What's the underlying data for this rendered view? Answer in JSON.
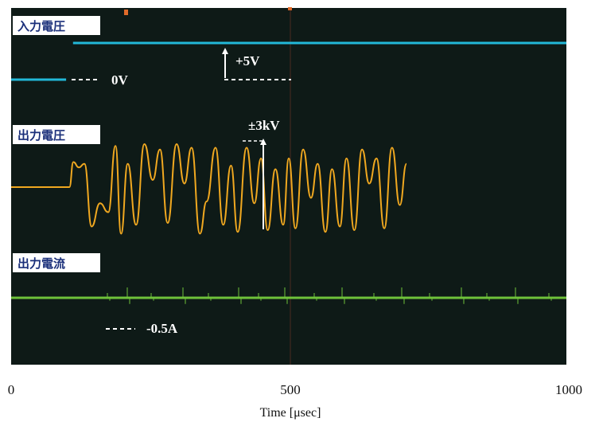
{
  "chart_data": {
    "type": "line",
    "xlabel": "Time [μsec]",
    "xlim": [
      0,
      1000
    ],
    "x_ticks": [
      "0",
      "500",
      "1000"
    ],
    "grid": false,
    "background": "#0e1a17",
    "channels": [
      {
        "name": "入力電圧",
        "color": "#22b8d8",
        "annotations": [
          "0V",
          "+5V"
        ],
        "points": [
          [
            0,
            0
          ],
          [
            99,
            0
          ],
          [
            100,
            5
          ],
          [
            1000,
            5
          ]
        ]
      },
      {
        "name": "出力電圧",
        "color": "#f0a820",
        "annotations": [
          "±3kV"
        ],
        "points": [
          [
            0,
            0
          ],
          [
            105,
            0
          ],
          [
            112,
            1.4
          ],
          [
            122,
            1.1
          ],
          [
            132,
            1.3
          ],
          [
            145,
            -2.2
          ],
          [
            160,
            -0.9
          ],
          [
            175,
            -1.4
          ],
          [
            188,
            2.3
          ],
          [
            198,
            -2.6
          ],
          [
            210,
            1.3
          ],
          [
            225,
            -2.1
          ],
          [
            240,
            2.4
          ],
          [
            255,
            0.4
          ],
          [
            268,
            2.1
          ],
          [
            282,
            -2.0
          ],
          [
            298,
            2.4
          ],
          [
            312,
            0.2
          ],
          [
            325,
            2.2
          ],
          [
            340,
            -2.6
          ],
          [
            352,
            -0.8
          ],
          [
            368,
            2.2
          ],
          [
            382,
            -2.1
          ],
          [
            396,
            1.2
          ],
          [
            408,
            -2.5
          ],
          [
            424,
            2.2
          ],
          [
            438,
            -0.9
          ],
          [
            450,
            1.6
          ],
          [
            462,
            -2.4
          ],
          [
            476,
            1.0
          ],
          [
            490,
            -2.1
          ],
          [
            500,
            1.6
          ],
          [
            512,
            -2.3
          ],
          [
            526,
            2.1
          ],
          [
            540,
            -0.6
          ],
          [
            552,
            1.3
          ],
          [
            566,
            -2.5
          ],
          [
            578,
            1.0
          ],
          [
            592,
            -2.2
          ],
          [
            604,
            1.6
          ],
          [
            618,
            -2.4
          ],
          [
            632,
            2.1
          ],
          [
            645,
            0.2
          ],
          [
            658,
            1.6
          ],
          [
            672,
            -2.3
          ],
          [
            686,
            2.2
          ],
          [
            700,
            -1.0
          ],
          [
            712,
            1.3
          ]
        ]
      },
      {
        "name": "出力電流",
        "color": "#6fc23a",
        "annotations": [
          "-0.5A"
        ],
        "points": [
          [
            0,
            0
          ],
          [
            1000,
            0
          ]
        ]
      }
    ]
  }
}
